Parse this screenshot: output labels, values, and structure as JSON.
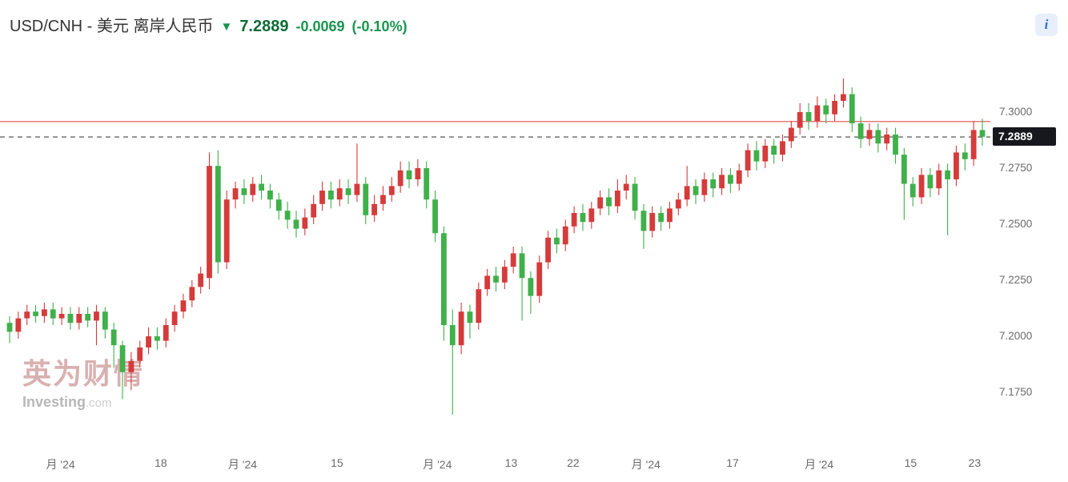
{
  "header": {
    "title": "USD/CNH - 美元 离岸人民币",
    "direction_arrow": "▼",
    "price": "7.2889",
    "change": "-0.0069",
    "change_pct": "(-0.10%)"
  },
  "info_icon": {
    "glyph": "i"
  },
  "watermark": {
    "brand_cn": "英为财情",
    "brand_en": "Investing",
    "brand_suffix": ".com"
  },
  "axis": {
    "y_labels": [
      "7.3000",
      "7.2750",
      "7.2500",
      "7.2250",
      "7.2000",
      "7.1750"
    ],
    "price_badge": "7.2889",
    "x_labels": [
      {
        "label": "月 '24",
        "pos": 0.055
      },
      {
        "label": "18",
        "pos": 0.157
      },
      {
        "label": "月 '24",
        "pos": 0.24
      },
      {
        "label": "15",
        "pos": 0.336
      },
      {
        "label": "月 '24",
        "pos": 0.438
      },
      {
        "label": "13",
        "pos": 0.513
      },
      {
        "label": "22",
        "pos": 0.576
      },
      {
        "label": "月 '24",
        "pos": 0.65
      },
      {
        "label": "17",
        "pos": 0.738
      },
      {
        "label": "月 '24",
        "pos": 0.826
      },
      {
        "label": "15",
        "pos": 0.919
      },
      {
        "label": "23",
        "pos": 0.984
      }
    ]
  },
  "chart_data": {
    "type": "candlestick",
    "title": "USD/CNH - 美元 离岸人民币",
    "last_price": 7.2889,
    "change": -0.0069,
    "change_pct": -0.1,
    "up_color": "#d53b3b",
    "down_color": "#3fb04a",
    "red_line_level": 7.2958,
    "red_line_color": "#e0605f",
    "current_price_line": 7.2889,
    "dashed_line_color": "#444444",
    "badge_bg": "#16181d",
    "ylim": [
      7.155,
      7.325
    ],
    "y_ticks": [
      7.3,
      7.275,
      7.25,
      7.225,
      7.2,
      7.175
    ],
    "candles": [
      [
        7.206,
        7.209,
        7.197,
        7.202
      ],
      [
        7.202,
        7.211,
        7.199,
        7.208
      ],
      [
        7.208,
        7.214,
        7.205,
        7.211
      ],
      [
        7.211,
        7.214,
        7.206,
        7.209
      ],
      [
        7.209,
        7.215,
        7.206,
        7.212
      ],
      [
        7.212,
        7.215,
        7.205,
        7.208
      ],
      [
        7.208,
        7.213,
        7.205,
        7.21
      ],
      [
        7.21,
        7.213,
        7.203,
        7.206
      ],
      [
        7.206,
        7.213,
        7.203,
        7.21
      ],
      [
        7.21,
        7.213,
        7.204,
        7.207
      ],
      [
        7.207,
        7.214,
        7.196,
        7.211
      ],
      [
        7.211,
        7.213,
        7.199,
        7.203
      ],
      [
        7.203,
        7.206,
        7.186,
        7.196
      ],
      [
        7.196,
        7.198,
        7.172,
        7.184
      ],
      [
        7.184,
        7.193,
        7.176,
        7.189
      ],
      [
        7.189,
        7.198,
        7.186,
        7.195
      ],
      [
        7.195,
        7.204,
        7.192,
        7.2
      ],
      [
        7.2,
        7.204,
        7.194,
        7.198
      ],
      [
        7.198,
        7.208,
        7.195,
        7.205
      ],
      [
        7.205,
        7.214,
        7.202,
        7.211
      ],
      [
        7.211,
        7.219,
        7.208,
        7.216
      ],
      [
        7.216,
        7.225,
        7.213,
        7.222
      ],
      [
        7.222,
        7.231,
        7.219,
        7.228
      ],
      [
        7.226,
        7.282,
        7.221,
        7.276
      ],
      [
        7.276,
        7.283,
        7.228,
        7.233
      ],
      [
        7.233,
        7.265,
        7.23,
        7.261
      ],
      [
        7.261,
        7.269,
        7.257,
        7.266
      ],
      [
        7.266,
        7.27,
        7.259,
        7.263
      ],
      [
        7.263,
        7.271,
        7.26,
        7.268
      ],
      [
        7.268,
        7.272,
        7.261,
        7.265
      ],
      [
        7.265,
        7.268,
        7.257,
        7.261
      ],
      [
        7.261,
        7.264,
        7.252,
        7.256
      ],
      [
        7.256,
        7.26,
        7.248,
        7.252
      ],
      [
        7.252,
        7.256,
        7.244,
        7.248
      ],
      [
        7.248,
        7.257,
        7.245,
        7.253
      ],
      [
        7.253,
        7.263,
        7.25,
        7.259
      ],
      [
        7.259,
        7.269,
        7.256,
        7.265
      ],
      [
        7.265,
        7.269,
        7.257,
        7.261
      ],
      [
        7.261,
        7.27,
        7.258,
        7.266
      ],
      [
        7.266,
        7.27,
        7.259,
        7.263
      ],
      [
        7.263,
        7.286,
        7.26,
        7.268
      ],
      [
        7.268,
        7.271,
        7.25,
        7.254
      ],
      [
        7.254,
        7.263,
        7.251,
        7.259
      ],
      [
        7.259,
        7.267,
        7.256,
        7.263
      ],
      [
        7.263,
        7.271,
        7.26,
        7.267
      ],
      [
        7.267,
        7.278,
        7.264,
        7.274
      ],
      [
        7.274,
        7.278,
        7.266,
        7.27
      ],
      [
        7.27,
        7.279,
        7.267,
        7.275
      ],
      [
        7.275,
        7.278,
        7.257,
        7.261
      ],
      [
        7.261,
        7.265,
        7.242,
        7.246
      ],
      [
        7.246,
        7.249,
        7.198,
        7.205
      ],
      [
        7.205,
        7.212,
        7.165,
        7.196
      ],
      [
        7.196,
        7.215,
        7.192,
        7.211
      ],
      [
        7.211,
        7.214,
        7.199,
        7.206
      ],
      [
        7.206,
        7.224,
        7.203,
        7.221
      ],
      [
        7.221,
        7.23,
        7.218,
        7.227
      ],
      [
        7.227,
        7.231,
        7.22,
        7.224
      ],
      [
        7.224,
        7.234,
        7.221,
        7.231
      ],
      [
        7.231,
        7.24,
        7.228,
        7.237
      ],
      [
        7.237,
        7.24,
        7.207,
        7.226
      ],
      [
        7.226,
        7.229,
        7.21,
        7.218
      ],
      [
        7.218,
        7.236,
        7.215,
        7.233
      ],
      [
        7.233,
        7.247,
        7.23,
        7.244
      ],
      [
        7.244,
        7.248,
        7.237,
        7.241
      ],
      [
        7.241,
        7.252,
        7.238,
        7.249
      ],
      [
        7.249,
        7.258,
        7.246,
        7.255
      ],
      [
        7.255,
        7.259,
        7.247,
        7.251
      ],
      [
        7.251,
        7.26,
        7.248,
        7.257
      ],
      [
        7.257,
        7.265,
        7.254,
        7.262
      ],
      [
        7.262,
        7.266,
        7.254,
        7.258
      ],
      [
        7.258,
        7.27,
        7.255,
        7.265
      ],
      [
        7.265,
        7.272,
        7.261,
        7.268
      ],
      [
        7.268,
        7.271,
        7.252,
        7.256
      ],
      [
        7.256,
        7.259,
        7.239,
        7.247
      ],
      [
        7.247,
        7.258,
        7.244,
        7.255
      ],
      [
        7.255,
        7.258,
        7.247,
        7.251
      ],
      [
        7.251,
        7.26,
        7.248,
        7.257
      ],
      [
        7.257,
        7.264,
        7.254,
        7.261
      ],
      [
        7.261,
        7.276,
        7.258,
        7.267
      ],
      [
        7.267,
        7.27,
        7.259,
        7.263
      ],
      [
        7.263,
        7.273,
        7.26,
        7.27
      ],
      [
        7.27,
        7.273,
        7.262,
        7.266
      ],
      [
        7.266,
        7.275,
        7.263,
        7.272
      ],
      [
        7.272,
        7.275,
        7.264,
        7.268
      ],
      [
        7.268,
        7.277,
        7.265,
        7.274
      ],
      [
        7.274,
        7.286,
        7.271,
        7.283
      ],
      [
        7.283,
        7.287,
        7.274,
        7.278
      ],
      [
        7.278,
        7.288,
        7.275,
        7.285
      ],
      [
        7.285,
        7.288,
        7.277,
        7.281
      ],
      [
        7.281,
        7.29,
        7.278,
        7.287
      ],
      [
        7.287,
        7.296,
        7.284,
        7.293
      ],
      [
        7.293,
        7.304,
        7.29,
        7.3
      ],
      [
        7.3,
        7.304,
        7.292,
        7.296
      ],
      [
        7.296,
        7.307,
        7.293,
        7.303
      ],
      [
        7.303,
        7.306,
        7.295,
        7.299
      ],
      [
        7.299,
        7.308,
        7.296,
        7.305
      ],
      [
        7.305,
        7.315,
        7.302,
        7.308
      ],
      [
        7.308,
        7.311,
        7.291,
        7.295
      ],
      [
        7.295,
        7.298,
        7.284,
        7.288
      ],
      [
        7.288,
        7.295,
        7.285,
        7.292
      ],
      [
        7.292,
        7.295,
        7.282,
        7.286
      ],
      [
        7.286,
        7.293,
        7.283,
        7.29
      ],
      [
        7.29,
        7.293,
        7.277,
        7.281
      ],
      [
        7.281,
        7.284,
        7.252,
        7.268
      ],
      [
        7.268,
        7.271,
        7.258,
        7.262
      ],
      [
        7.262,
        7.275,
        7.259,
        7.272
      ],
      [
        7.272,
        7.275,
        7.262,
        7.266
      ],
      [
        7.266,
        7.277,
        7.263,
        7.274
      ],
      [
        7.274,
        7.277,
        7.245,
        7.27
      ],
      [
        7.27,
        7.285,
        7.267,
        7.282
      ],
      [
        7.282,
        7.286,
        7.274,
        7.279
      ],
      [
        7.279,
        7.296,
        7.276,
        7.292
      ],
      [
        7.292,
        7.297,
        7.285,
        7.289
      ]
    ]
  }
}
